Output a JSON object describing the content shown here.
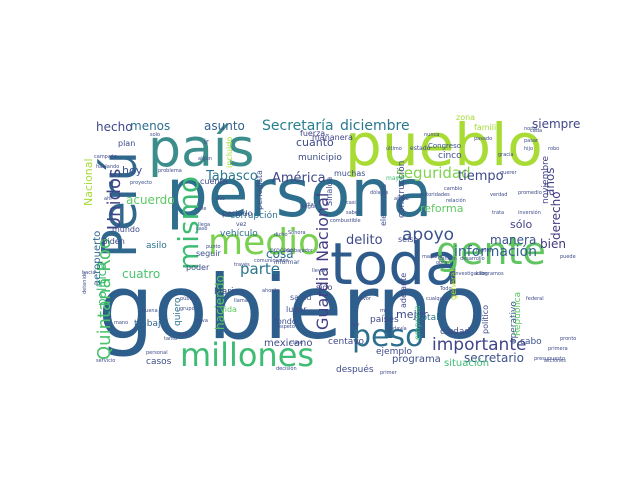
{
  "wordcloud": {
    "palette": [
      "#30678d",
      "#3b518b",
      "#24868e",
      "#1f998a",
      "#3ebc74",
      "#6ccd5a",
      "#a2da37",
      "#440154",
      "#46327e",
      "#2a788e"
    ],
    "words": [
      {
        "text": "gobierno",
        "color": "#2e5f8c"
      },
      {
        "text": "persona",
        "color": "#2e6f8e"
      },
      {
        "text": "pueblo",
        "color": "#a8db34"
      },
      {
        "text": "país",
        "color": "#3b8e8c"
      },
      {
        "text": "Perú",
        "color": "#30678d"
      },
      {
        "text": "toda",
        "color": "#2f5b8c"
      },
      {
        "text": "gente",
        "color": "#60c560"
      },
      {
        "text": "medio",
        "color": "#7ad151"
      },
      {
        "text": "millones",
        "color": "#3fbc73"
      },
      {
        "text": "peso",
        "color": "#2c6e8e"
      },
      {
        "text": "mismo",
        "color": "#3dbc74"
      },
      {
        "text": "Quintana Roo",
        "color": "#4cc26c"
      },
      {
        "text": "Unidos",
        "color": "#414487"
      },
      {
        "text": "Guardia Nacional",
        "color": "#433e85"
      },
      {
        "text": "apoyo",
        "color": "#3b528b"
      },
      {
        "text": "importante",
        "color": "#404588"
      },
      {
        "text": "seguridad",
        "color": "#7fd34e"
      },
      {
        "text": "parte",
        "color": "#2a768e"
      },
      {
        "text": "Secretaría",
        "color": "#277f8e"
      },
      {
        "text": "diciembre",
        "color": "#2a788e"
      },
      {
        "text": "delito",
        "color": "#3e4a89"
      },
      {
        "text": "información",
        "color": "#33628d"
      },
      {
        "text": "América",
        "color": "#3f4788"
      },
      {
        "text": "Tabasco",
        "color": "#2b758e"
      },
      {
        "text": "manera",
        "color": "#3a538b"
      },
      {
        "text": "secretario",
        "color": "#3b528b"
      },
      {
        "text": "tiempo",
        "color": "#3e4989"
      },
      {
        "text": "menos",
        "color": "#2d708e"
      },
      {
        "text": "asunto",
        "color": "#355f8d"
      },
      {
        "text": "siempre",
        "color": "#414487"
      },
      {
        "text": "derecho",
        "color": "#443a83"
      },
      {
        "text": "bien",
        "color": "#453882"
      },
      {
        "text": "años",
        "color": "#404588"
      },
      {
        "text": "sólo",
        "color": "#414487"
      },
      {
        "text": "acuerdo",
        "color": "#5ec962"
      },
      {
        "text": "cuatro",
        "color": "#4ac16d"
      },
      {
        "text": "reforma",
        "color": "#5ec962"
      },
      {
        "text": "hecho",
        "color": "#3e4989"
      },
      {
        "text": "política",
        "color": "#3dbc74"
      },
      {
        "text": "cosa",
        "color": "#2c738e"
      },
      {
        "text": "haciendo",
        "color": "#5ec962"
      },
      {
        "text": "Nacional",
        "color": "#a5db36"
      },
      {
        "text": "cuanto",
        "color": "#3e4c8a"
      },
      {
        "text": "hoy",
        "color": "#3b528b"
      },
      {
        "text": "aeropuerto",
        "color": "#31688e"
      },
      {
        "text": "vehículo",
        "color": "#2d718e"
      },
      {
        "text": "corrupción",
        "color": "#2c728e"
      },
      {
        "text": "periodo",
        "color": "#3e4a89"
      },
      {
        "text": "construcción",
        "color": "#3f4788"
      },
      {
        "text": "mejor",
        "color": "#3e4a89"
      },
      {
        "text": "cinco",
        "color": "#3e4c8a"
      },
      {
        "text": "fuerza",
        "color": "#414487"
      },
      {
        "text": "trabajo",
        "color": "#31678e"
      },
      {
        "text": "quiero",
        "color": "#2c738e"
      },
      {
        "text": "casos",
        "color": "#3c4f8a"
      },
      {
        "text": "mexicano",
        "color": "#3e4c8a"
      },
      {
        "text": "centavo",
        "color": "#3f4889"
      },
      {
        "text": "después",
        "color": "#3e4c8a"
      },
      {
        "text": "programa",
        "color": "#3c4f8a"
      },
      {
        "text": "situación",
        "color": "#3dbc74"
      },
      {
        "text": "ejemplo",
        "color": "#3f4889"
      },
      {
        "text": "países",
        "color": "#3e4989"
      },
      {
        "text": "total",
        "color": "#2a768e"
      },
      {
        "text": "ciudad",
        "color": "#3f4788"
      },
      {
        "text": "cabo",
        "color": "#3b528b"
      },
      {
        "text": "operativo",
        "color": "#3b528b"
      },
      {
        "text": "noviembre",
        "color": "#414487"
      },
      {
        "text": "municipio",
        "color": "#3e4c8a"
      },
      {
        "text": "mañanera",
        "color": "#3f4788"
      },
      {
        "text": "muchas",
        "color": "#3c4f8a"
      },
      {
        "text": "plan",
        "color": "#3e4a89"
      },
      {
        "text": "cuenta",
        "color": "#3e4a89"
      },
      {
        "text": "mundo",
        "color": "#3e4c8a"
      },
      {
        "text": "asilo",
        "color": "#2c738e"
      },
      {
        "text": "poder",
        "color": "#3e4c8a"
      },
      {
        "text": "seguir",
        "color": "#3b528b"
      },
      {
        "text": "Marina",
        "color": "#3b528b"
      },
      {
        "text": "salud",
        "color": "#3b528b"
      },
      {
        "text": "lugar",
        "color": "#3e4a89"
      },
      {
        "text": "vida",
        "color": "#5ec962"
      },
      {
        "text": "fondo",
        "color": "#3c4f8a"
      },
      {
        "text": "sido",
        "color": "#414487"
      },
      {
        "text": "seis",
        "color": "#3e4c8a"
      },
      {
        "text": "adelante",
        "color": "#414487"
      },
      {
        "text": "empresa",
        "color": "#35b779"
      },
      {
        "text": "político",
        "color": "#3e4c8a"
      },
      {
        "text": "República",
        "color": "#5ec962"
      },
      {
        "text": "general",
        "color": "#bddf26"
      },
      {
        "text": "elementos",
        "color": "#3b528b"
      },
      {
        "text": "Biden",
        "color": "#3e4a89"
      },
      {
        "text": "periodista",
        "color": "#3c4f8a"
      },
      {
        "text": "incluido",
        "color": "#a5db36"
      },
      {
        "text": "zona",
        "color": "#a5db36"
      },
      {
        "text": "familia",
        "color": "#a5db36"
      },
      {
        "text": "Congreso",
        "color": "#3b528b"
      },
      {
        "text": "proceso",
        "color": "#3b528b"
      },
      {
        "text": "informar",
        "color": "#3b528b"
      },
      {
        "text": "Sinaloa",
        "color": "#3e4c8a"
      },
      {
        "text": "mayor",
        "color": "#3dbc74"
      },
      {
        "text": "estado",
        "color": "#3e4a89"
      },
      {
        "text": "problema",
        "color": "#3e4c8a"
      },
      {
        "text": "proyecto",
        "color": "#3b528b"
      },
      {
        "text": "pasado",
        "color": "#3e4a89"
      },
      {
        "text": "algún",
        "color": "#3e4c8a"
      },
      {
        "text": "nunca",
        "color": "#3e4c8a"
      },
      {
        "text": "cada",
        "color": "#3e4c8a"
      },
      {
        "text": "robo",
        "color": "#3e4c8a"
      },
      {
        "text": "hijo",
        "color": "#3e4c8a"
      },
      {
        "text": "gracia",
        "color": "#3e4c8a"
      },
      {
        "text": "Cancún",
        "color": "#3e4c8a"
      },
      {
        "text": "desarrollo",
        "color": "#3e4c8a"
      },
      {
        "text": "dólares",
        "color": "#3e4c8a"
      },
      {
        "text": "verdad",
        "color": "#3e4c8a"
      },
      {
        "text": "trata",
        "color": "#3e4c8a"
      },
      {
        "text": "inversión",
        "color": "#3e4c8a"
      },
      {
        "text": "kilogramos",
        "color": "#3e4c8a"
      },
      {
        "text": "investigación",
        "color": "#3e4c8a"
      },
      {
        "text": "mañana",
        "color": "#3e4c8a"
      },
      {
        "text": "través",
        "color": "#3e4c8a"
      },
      {
        "text": "respeto",
        "color": "#3e4c8a"
      },
      {
        "text": "llama",
        "color": "#3e4c8a"
      },
      {
        "text": "grupo",
        "color": "#3e4c8a"
      },
      {
        "text": "público",
        "color": "#3e4c8a"
      },
      {
        "text": "hacia",
        "color": "#3e4c8a"
      },
      {
        "text": "servicio",
        "color": "#3e4c8a"
      },
      {
        "text": "federal",
        "color": "#3e4c8a"
      },
      {
        "text": "acciones",
        "color": "#3e4c8a"
      },
      {
        "text": "primera",
        "color": "#3e4c8a"
      },
      {
        "text": "presupuesto",
        "color": "#3e4c8a"
      },
      {
        "text": "favor",
        "color": "#3e4c8a"
      },
      {
        "text": "Sonora",
        "color": "#3e4c8a"
      },
      {
        "text": "embajador",
        "color": "#3e4c8a"
      },
      {
        "text": "comunicación",
        "color": "#3e4c8a"
      },
      {
        "text": "saben",
        "color": "#3e4c8a"
      },
      {
        "text": "casi",
        "color": "#3e4c8a"
      },
      {
        "text": "ley",
        "color": "#3e4c8a"
      },
      {
        "text": "campaña",
        "color": "#3e4c8a"
      },
      {
        "text": "hablando",
        "color": "#3e4c8a"
      },
      {
        "text": "norte",
        "color": "#3e4c8a"
      },
      {
        "text": "último",
        "color": "#3e4c8a"
      },
      {
        "text": "relación",
        "color": "#3e4c8a"
      },
      {
        "text": "cambio",
        "color": "#3e4c8a"
      },
      {
        "text": "puede",
        "color": "#3e4c8a"
      },
      {
        "text": "tres",
        "color": "#3e4c8a"
      },
      {
        "text": "solo",
        "color": "#3e4c8a"
      },
      {
        "text": "ir",
        "color": "#3e4c8a"
      },
      {
        "text": "mil",
        "color": "#3e4c8a"
      },
      {
        "text": "Todo",
        "color": "#3e4c8a"
      },
      {
        "text": "vez",
        "color": "#3e4c8a"
      },
      {
        "text": "vale",
        "color": "#3e4c8a"
      },
      {
        "text": "caso",
        "color": "#3e4c8a"
      },
      {
        "text": "dos",
        "color": "#3e4c8a"
      },
      {
        "text": "día",
        "color": "#3e4c8a"
      },
      {
        "text": "arriba",
        "color": "#3e4c8a"
      },
      {
        "text": "autoridades",
        "color": "#3e4c8a"
      },
      {
        "text": "combustible",
        "color": "#3e4c8a"
      },
      {
        "text": "promedio",
        "color": "#3e4c8a"
      },
      {
        "text": "pasar",
        "color": "#3e4c8a"
      },
      {
        "text": "obra",
        "color": "#3e4c8a"
      },
      {
        "text": "llega",
        "color": "#3e4c8a"
      },
      {
        "text": "punto",
        "color": "#3e4c8a"
      },
      {
        "text": "dicho",
        "color": "#3e4c8a"
      },
      {
        "text": "clase",
        "color": "#3e4c8a"
      },
      {
        "text": "personal",
        "color": "#3e4c8a"
      },
      {
        "text": "detenido",
        "color": "#3e4c8a"
      },
      {
        "text": "llevar",
        "color": "#3e4c8a"
      },
      {
        "text": "ningún",
        "color": "#3e4c8a"
      },
      {
        "text": "lleva",
        "color": "#3e4c8a"
      },
      {
        "text": "tanto",
        "color": "#3e4c8a"
      },
      {
        "text": "buena",
        "color": "#3e4c8a"
      },
      {
        "text": "decisión",
        "color": "#3e4c8a"
      },
      {
        "text": "todavía",
        "color": "#3e4c8a"
      },
      {
        "text": "ciento",
        "color": "#3e4c8a"
      },
      {
        "text": "cualquier",
        "color": "#3e4c8a"
      },
      {
        "text": "querer",
        "color": "#3e4c8a"
      },
      {
        "text": "ahorita",
        "color": "#3e4c8a"
      },
      {
        "text": "mano",
        "color": "#3e4c8a"
      },
      {
        "text": "ahí",
        "color": "#3e4c8a"
      },
      {
        "text": "primer",
        "color": "#3e4c8a"
      },
      {
        "text": "pronto",
        "color": "#3e4c8a"
      }
    ]
  }
}
